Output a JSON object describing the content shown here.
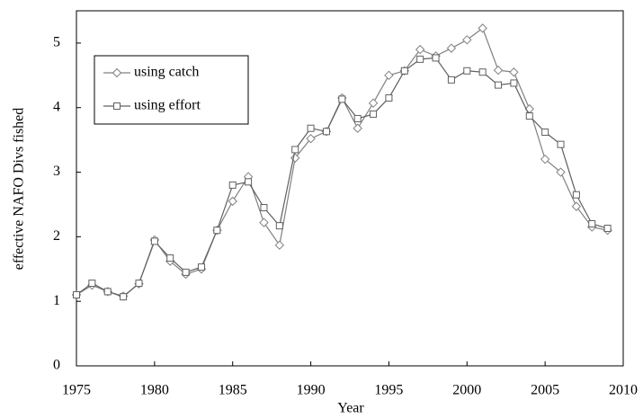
{
  "chart_data": {
    "type": "line",
    "x_label": "Year",
    "y_label": "effective NAFO Divs fished",
    "x": [
      1975,
      1976,
      1977,
      1978,
      1979,
      1980,
      1981,
      1982,
      1983,
      1984,
      1985,
      1986,
      1987,
      1988,
      1989,
      1990,
      1991,
      1992,
      1993,
      1994,
      1995,
      1996,
      1997,
      1998,
      1999,
      2000,
      2001,
      2002,
      2003,
      2004,
      2005,
      2006,
      2007,
      2008,
      2009
    ],
    "series": [
      {
        "name": "using catch",
        "color": "#808080",
        "marker": "diamond",
        "values": [
          1.1,
          1.25,
          1.15,
          1.08,
          1.27,
          1.95,
          1.62,
          1.42,
          1.5,
          2.1,
          2.55,
          2.93,
          2.22,
          1.87,
          3.22,
          3.52,
          3.63,
          4.15,
          3.68,
          4.07,
          4.5,
          4.57,
          4.9,
          4.8,
          4.92,
          5.05,
          5.23,
          4.58,
          4.55,
          3.98,
          3.2,
          3.0,
          2.47,
          2.15,
          2.1
        ]
      },
      {
        "name": "using effort",
        "color": "#606060",
        "marker": "square",
        "values": [
          1.1,
          1.28,
          1.15,
          1.07,
          1.28,
          1.93,
          1.67,
          1.45,
          1.53,
          2.1,
          2.8,
          2.85,
          2.45,
          2.17,
          3.35,
          3.68,
          3.63,
          4.13,
          3.83,
          3.9,
          4.15,
          4.57,
          4.75,
          4.77,
          4.43,
          4.57,
          4.55,
          4.35,
          4.38,
          3.87,
          3.62,
          3.43,
          2.65,
          2.2,
          2.13
        ]
      }
    ],
    "xlim": [
      1975,
      2010
    ],
    "xticks": [
      1975,
      1980,
      1985,
      1990,
      1995,
      2000,
      2005,
      2010
    ],
    "ylim": [
      0,
      5.5
    ],
    "yticks": [
      0,
      1,
      2,
      3,
      4,
      5
    ],
    "legend": "upper-left",
    "grid": false
  }
}
